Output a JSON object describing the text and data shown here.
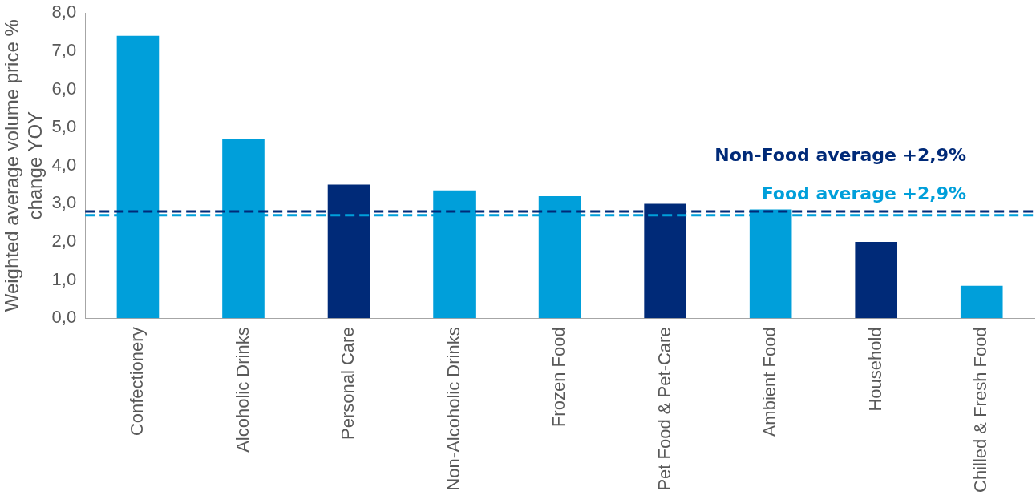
{
  "chart_data": {
    "type": "bar",
    "ylabel": "Weighted average volume price % change YOY",
    "categories": [
      "Confectionery",
      "Alcoholic Drinks",
      "Personal Care",
      "Non-Alcoholic Drinks",
      "Frozen Food",
      "Pet Food & Pet-Care",
      "Ambient Food",
      "Household",
      "Chilled & Fresh Food"
    ],
    "values": [
      7.4,
      4.7,
      3.5,
      3.35,
      3.2,
      3.0,
      2.85,
      2.0,
      0.85
    ],
    "colors": [
      "#009fda",
      "#009fda",
      "#002a78",
      "#009fda",
      "#009fda",
      "#002a78",
      "#009fda",
      "#002a78",
      "#009fda"
    ],
    "ylim": [
      0,
      8
    ],
    "yticks": [
      {
        "value": 0,
        "label": "0,0"
      },
      {
        "value": 1,
        "label": "1,0"
      },
      {
        "value": 2,
        "label": "2,0"
      },
      {
        "value": 3,
        "label": "3,0"
      },
      {
        "value": 4,
        "label": "4,0"
      },
      {
        "value": 5,
        "label": "5,0"
      },
      {
        "value": 6,
        "label": "6,0"
      },
      {
        "value": 7,
        "label": "7,0"
      },
      {
        "value": 8,
        "label": "8,0"
      }
    ],
    "grid": false,
    "legend": false,
    "ref_lines": [
      {
        "axis": "y",
        "value": 2.8,
        "label": "Non-Food average +2,9%",
        "color": "#002a78",
        "line_style": "dashed"
      },
      {
        "axis": "y",
        "value": 2.7,
        "label": "Food average +2,9%",
        "color": "#009fda",
        "line_style": "dashed"
      }
    ]
  }
}
